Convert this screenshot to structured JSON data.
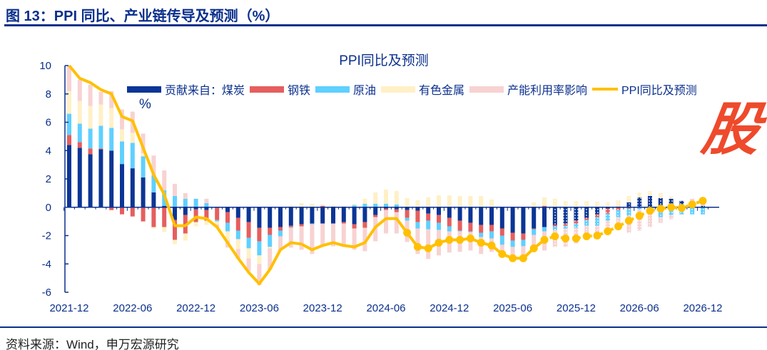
{
  "header": {
    "title": "图 13：PPI 同比、产业链传导及预测（%）"
  },
  "source": "资料来源：Wind，申万宏源研究",
  "logo_text": "股",
  "chart_data": {
    "type": "bar",
    "title": "PPI同比及预测",
    "ylabel": "%",
    "xlabel": "",
    "ylim": [
      -6,
      10
    ],
    "yticks": [
      "10",
      "8",
      "6",
      "4",
      "2",
      "0",
      "-2",
      "-4",
      "-6"
    ],
    "ytick_values": [
      10,
      8,
      6,
      4,
      2,
      0,
      -2,
      -4,
      -6
    ],
    "start_month": "2021-12",
    "x_tick_labels": [
      "2021-12",
      "2022-06",
      "2022-12",
      "2023-06",
      "2023-12",
      "2024-06",
      "2024-12",
      "2025-06",
      "2025-12",
      "2026-06",
      "2026-12"
    ],
    "x_tick_every_months": 6,
    "forecast_start_index": 46,
    "marker_start_index": 32,
    "legend_placement": "top",
    "stacked": true,
    "series": [
      {
        "name": "贡献来自：煤炭",
        "color": "#0b3596",
        "values": [
          4.4,
          4.2,
          3.75,
          4.1,
          4.0,
          3.05,
          2.75,
          2.1,
          1.05,
          0.1,
          -0.9,
          -0.55,
          -0.15,
          -0.2,
          -0.05,
          -0.35,
          -0.75,
          -1.05,
          -1.45,
          -1.45,
          -1.4,
          -1.3,
          -1.2,
          -1.15,
          -1.15,
          -1.15,
          -1.05,
          -1.2,
          -1.05,
          -0.55,
          -0.1,
          -0.15,
          -0.2,
          -0.25,
          -0.45,
          -0.55,
          -0.75,
          -0.95,
          -1.1,
          -1.25,
          -1.25,
          -1.5,
          -1.8,
          -1.85,
          -1.5,
          -1.4,
          -1.25,
          -1.15,
          -0.95,
          -0.75,
          -0.5,
          -0.1,
          0.05,
          0.35,
          0.7,
          0.8,
          0.65,
          0.6,
          0.45,
          0.2,
          0.1
        ]
      },
      {
        "name": "钢铁",
        "color": "#e65e5e",
        "values": [
          0.7,
          0.4,
          0.4,
          0.05,
          -0.2,
          -0.5,
          -0.65,
          -1.0,
          -1.4,
          -1.4,
          -1.4,
          -1.3,
          -0.9,
          -0.75,
          -0.85,
          -0.75,
          -0.9,
          -1.1,
          -0.95,
          -0.5,
          -0.25,
          -0.1,
          -0.15,
          0,
          0.1,
          0,
          -0.1,
          -0.3,
          -0.4,
          -0.15,
          -0.1,
          -0.2,
          -0.55,
          -0.8,
          -0.5,
          -0.55,
          -0.6,
          -0.7,
          -0.6,
          -0.55,
          -0.45,
          -0.5,
          -0.55,
          -0.45,
          -0.05,
          0.1,
          -0.1,
          -0.15,
          -0.2,
          -0.15,
          -0.2,
          -0.35,
          -0.2,
          -0.1,
          0,
          0,
          0,
          0,
          0,
          0.1,
          0
        ]
      },
      {
        "name": "原油",
        "color": "#5fd0ff",
        "values": [
          1.5,
          1.3,
          1.4,
          1.6,
          1.6,
          1.6,
          1.8,
          1.5,
          1.2,
          1.1,
          0.8,
          0.6,
          0.6,
          0.3,
          -0.1,
          -0.6,
          -0.6,
          -0.75,
          -1.0,
          -0.85,
          -0.4,
          -0.05,
          0,
          -0.05,
          0,
          0.05,
          0.05,
          0.15,
          0.25,
          0.25,
          0.25,
          0.2,
          -0.2,
          -0.45,
          -0.6,
          -0.5,
          -0.35,
          -0.05,
          -0.05,
          -0.3,
          -0.5,
          -0.65,
          -0.45,
          -0.45,
          -0.4,
          -0.3,
          -0.25,
          -0.2,
          -0.3,
          -0.4,
          -0.6,
          -0.5,
          -0.5,
          -0.5,
          -0.15,
          -0.4,
          -0.7,
          -0.55,
          -0.5,
          -0.5,
          -0.5
        ]
      },
      {
        "name": "有色金属",
        "color": "#fff0c6",
        "values": [
          1.6,
          1.6,
          1.6,
          1.5,
          1.4,
          0.85,
          0.7,
          0.2,
          -0.1,
          -0.35,
          -0.3,
          -0.5,
          -0.3,
          -0.3,
          -0.2,
          -0.65,
          -0.7,
          -0.7,
          -0.6,
          -0.1,
          0,
          0.15,
          0.3,
          0.25,
          0.1,
          0.1,
          0.05,
          0.1,
          0.35,
          0.8,
          1.0,
          0.95,
          0.65,
          0.5,
          0.7,
          0.85,
          0.85,
          0.8,
          0.8,
          0.8,
          0.55,
          0.05,
          0.05,
          0,
          0.35,
          0.6,
          0.6,
          0.45,
          0.45,
          0.45,
          0.4,
          0.35,
          0.45,
          0.45,
          0.35,
          0.35,
          0.35,
          0.15,
          -0.05,
          0,
          0
        ]
      },
      {
        "name": "产能利用率影响",
        "color": "#f8d2d2",
        "values": [
          1.8,
          1.5,
          1.5,
          0.9,
          1.2,
          1.4,
          1.5,
          1.4,
          1.4,
          1.4,
          0.85,
          0.4,
          0,
          0.3,
          -0.2,
          -0.5,
          -0.7,
          -0.9,
          -1.5,
          -1.5,
          -1.0,
          -1.4,
          -1.65,
          -2.1,
          -1.6,
          -1.6,
          -1.65,
          -1.5,
          -1.65,
          -1.7,
          -1.65,
          -1.5,
          -1.5,
          -1.8,
          -2.1,
          -1.8,
          -1.5,
          -1.45,
          -1.3,
          -1.2,
          -0.95,
          -0.7,
          -0.9,
          -0.9,
          -1.2,
          -1.35,
          -1.2,
          -1.3,
          -1.1,
          -1.0,
          -0.8,
          -0.9,
          -0.6,
          -1.2,
          -1.5,
          -1.0,
          -0.4,
          -0.3,
          0,
          0.3,
          0.3
        ]
      }
    ],
    "line": {
      "name": "PPI同比及预测",
      "color": "#ffc000",
      "values": [
        10,
        9.1,
        8.8,
        8.3,
        8.0,
        6.4,
        6.1,
        4.2,
        2.3,
        0.9,
        -1.3,
        -1.3,
        -0.7,
        -0.8,
        -1.4,
        -2.5,
        -3.6,
        -4.6,
        -5.4,
        -4.4,
        -3.0,
        -2.5,
        -2.6,
        -3.0,
        -2.7,
        -2.5,
        -2.7,
        -2.8,
        -2.5,
        -1.4,
        -0.8,
        -0.8,
        -1.8,
        -2.8,
        -2.9,
        -2.5,
        -2.3,
        -2.3,
        -2.2,
        -2.5,
        -2.7,
        -3.3,
        -3.6,
        -3.6,
        -2.9,
        -2.3,
        -2.05,
        -2.2,
        -2.2,
        -2.05,
        -2.0,
        -1.7,
        -1.35,
        -0.95,
        -0.6,
        -0.25,
        -0.1,
        0,
        -0.05,
        0.2,
        0.45
      ]
    }
  }
}
